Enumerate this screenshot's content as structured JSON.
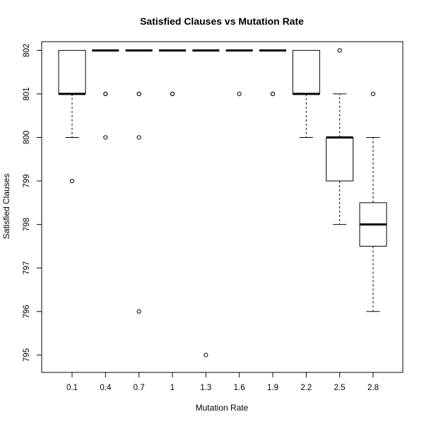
{
  "chart_data": {
    "type": "boxplot",
    "title": "Satisfied Clauses vs Mutation Rate",
    "xlabel": "Mutation Rate",
    "ylabel": "Satisfied Clauses",
    "ylim": [
      794.6,
      802.2
    ],
    "yticks": [
      795,
      796,
      797,
      798,
      799,
      800,
      801,
      802
    ],
    "grid": false,
    "categories": [
      "0.1",
      "0.4",
      "0.7",
      "1",
      "1.3",
      "1.6",
      "1.9",
      "2.2",
      "2.5",
      "2.8"
    ],
    "boxes": [
      {
        "category": "0.1",
        "whisker_low": 800,
        "q1": 801,
        "median": 801,
        "q3": 802,
        "whisker_high": 802,
        "outliers": [
          799
        ]
      },
      {
        "category": "0.4",
        "whisker_low": 802,
        "q1": 802,
        "median": 802,
        "q3": 802,
        "whisker_high": 802,
        "outliers": [
          801,
          801,
          800
        ]
      },
      {
        "category": "0.7",
        "whisker_low": 802,
        "q1": 802,
        "median": 802,
        "q3": 802,
        "whisker_high": 802,
        "outliers": [
          801,
          801,
          800,
          796
        ]
      },
      {
        "category": "1",
        "whisker_low": 802,
        "q1": 802,
        "median": 802,
        "q3": 802,
        "whisker_high": 802,
        "outliers": [
          801,
          801
        ]
      },
      {
        "category": "1.3",
        "whisker_low": 802,
        "q1": 802,
        "median": 802,
        "q3": 802,
        "whisker_high": 802,
        "outliers": [
          795
        ]
      },
      {
        "category": "1.6",
        "whisker_low": 802,
        "q1": 802,
        "median": 802,
        "q3": 802,
        "whisker_high": 802,
        "outliers": [
          801
        ]
      },
      {
        "category": "1.9",
        "whisker_low": 802,
        "q1": 802,
        "median": 802,
        "q3": 802,
        "whisker_high": 802,
        "outliers": [
          801,
          801
        ]
      },
      {
        "category": "2.2",
        "whisker_low": 800,
        "q1": 801,
        "median": 801,
        "q3": 802,
        "whisker_high": 802,
        "outliers": []
      },
      {
        "category": "2.5",
        "whisker_low": 798,
        "q1": 799,
        "median": 800,
        "q3": 800,
        "whisker_high": 801,
        "outliers": [
          802
        ]
      },
      {
        "category": "2.8",
        "whisker_low": 796,
        "q1": 797.5,
        "median": 798,
        "q3": 798.5,
        "whisker_high": 800,
        "outliers": [
          801
        ]
      }
    ],
    "colors": {
      "box_fill": "#ffffff",
      "stroke": "#000000",
      "background": "#ffffff"
    }
  }
}
